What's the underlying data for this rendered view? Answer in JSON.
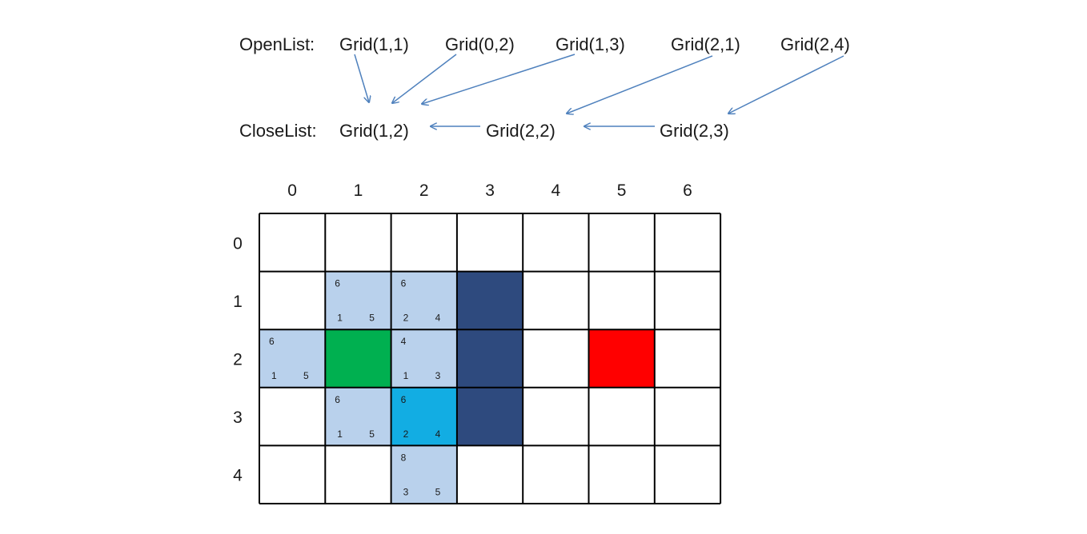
{
  "open_list": {
    "label": "OpenList:",
    "items": [
      {
        "text": "Grid(1,1)",
        "highlight": false
      },
      {
        "text": "Grid(0,2)",
        "highlight": false
      },
      {
        "text": "Grid(1,3)",
        "highlight": false
      },
      {
        "text": "Grid(2,1)",
        "highlight": false
      },
      {
        "text": "Grid(2,4)",
        "highlight": true
      }
    ]
  },
  "close_list": {
    "label": "CloseList:",
    "items": [
      "Grid(1,2)",
      "Grid(2,2)",
      "Grid(2,3)"
    ]
  },
  "grid": {
    "cols": [
      "0",
      "1",
      "2",
      "3",
      "4",
      "5",
      "6"
    ],
    "rows": [
      "0",
      "1",
      "2",
      "3",
      "4"
    ],
    "cells": [
      {
        "row": 1,
        "col": 1,
        "type": "open",
        "f": "6",
        "g": "1",
        "h": "5"
      },
      {
        "row": 1,
        "col": 2,
        "type": "open",
        "f": "6",
        "g": "2",
        "h": "4"
      },
      {
        "row": 2,
        "col": 0,
        "type": "open",
        "f": "6",
        "g": "1",
        "h": "5"
      },
      {
        "row": 2,
        "col": 2,
        "type": "open",
        "f": "4",
        "g": "1",
        "h": "3"
      },
      {
        "row": 3,
        "col": 1,
        "type": "open",
        "f": "6",
        "g": "1",
        "h": "5"
      },
      {
        "row": 3,
        "col": 2,
        "type": "current",
        "f": "6",
        "g": "2",
        "h": "4"
      },
      {
        "row": 4,
        "col": 2,
        "type": "open",
        "f": "8",
        "g": "3",
        "h": "5"
      },
      {
        "row": 1,
        "col": 3,
        "type": "wall"
      },
      {
        "row": 2,
        "col": 3,
        "type": "wall"
      },
      {
        "row": 3,
        "col": 3,
        "type": "wall"
      },
      {
        "row": 2,
        "col": 1,
        "type": "start"
      },
      {
        "row": 2,
        "col": 5,
        "type": "goal"
      }
    ]
  },
  "colors": {
    "open": "#b9d1ec",
    "current": "#12ade3",
    "wall": "#2e4a7e",
    "start": "#00b050",
    "goal": "#ff0000",
    "arrow": "#4f81bd",
    "highlight_text": "#e02020",
    "line": "#000000"
  }
}
